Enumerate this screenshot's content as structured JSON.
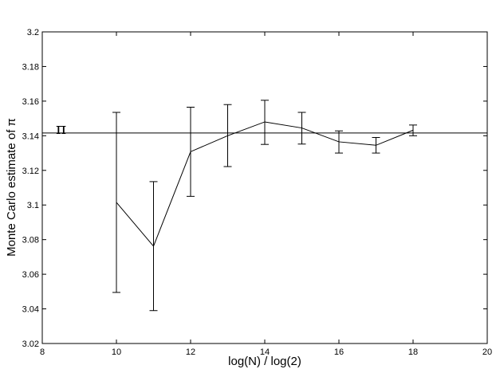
{
  "chart_data": {
    "type": "line",
    "xlabel": "log(N) / log(2)",
    "ylabel": "Monte Carlo estimate of π",
    "xlim": [
      8,
      20
    ],
    "ylim": [
      3.02,
      3.2
    ],
    "x_ticks": [
      "8",
      "10",
      "12",
      "14",
      "16",
      "18",
      "20"
    ],
    "y_ticks": [
      "3.02",
      "3.04",
      "3.06",
      "3.08",
      "3.1",
      "3.12",
      "3.14",
      "3.16",
      "3.18",
      "3.2"
    ],
    "grid": false,
    "reference_line": {
      "label": "π",
      "value": 3.14159
    },
    "series": [
      {
        "x": [
          10,
          11,
          12,
          13,
          14,
          15,
          16,
          17,
          18
        ],
        "y": [
          3.1015,
          3.0762,
          3.1308,
          3.14,
          3.148,
          3.1445,
          3.1365,
          3.1345,
          3.1432
        ],
        "err_low": [
          3.0495,
          3.039,
          3.105,
          3.1222,
          3.135,
          3.1352,
          3.13,
          3.13,
          3.14
        ],
        "err_high": [
          3.1535,
          3.1135,
          3.1565,
          3.158,
          3.1605,
          3.1535,
          3.1428,
          3.139,
          3.1462
        ]
      }
    ]
  }
}
